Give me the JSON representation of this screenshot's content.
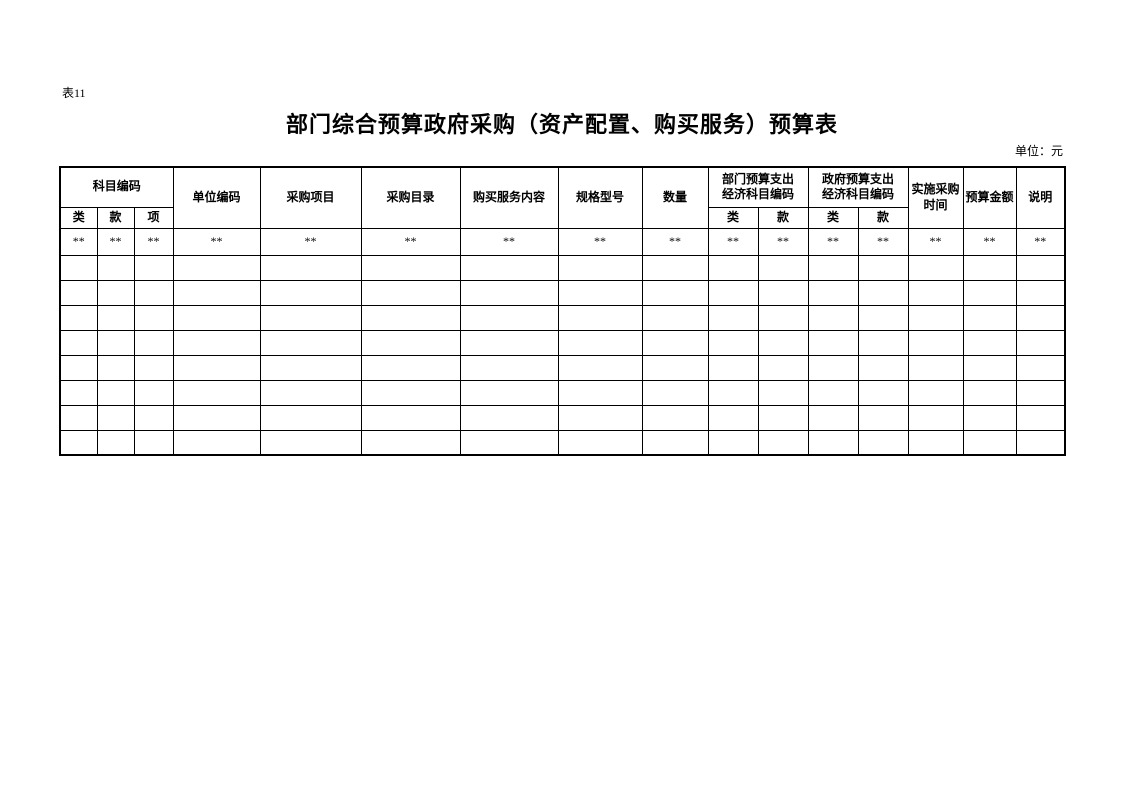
{
  "page": {
    "sheet_label": "表11",
    "title": "部门综合预算政府采购（资产配置、购买服务）预算表",
    "unit_note": "单位：元"
  },
  "table": {
    "header": {
      "subject_code": "科目编码",
      "subject_code_sub": [
        "类",
        "款",
        "项"
      ],
      "unit_code": "单位编码",
      "procurement_project": "采购项目",
      "procurement_catalog": "采购目录",
      "purchase_service_content": "购买服务内容",
      "spec_model": "规格型号",
      "quantity": "数量",
      "dept_budget_econ_line1": "部门预算支出",
      "dept_budget_econ_line2": "经济科目编码",
      "dept_budget_econ_sub": [
        "类",
        "款"
      ],
      "gov_budget_econ_line1": "政府预算支出",
      "gov_budget_econ_line2": "经济科目编码",
      "gov_budget_econ_sub": [
        "类",
        "款"
      ],
      "purchase_time_line1": "实施采购",
      "purchase_time_line2": "时间",
      "budget_amount": "预算金额",
      "note": "说明"
    },
    "rows": [
      [
        "**",
        "**",
        "**",
        "**",
        "**",
        "**",
        "**",
        "**",
        "**",
        "**",
        "**",
        "**",
        "**",
        "**",
        "**",
        "**"
      ],
      [
        "",
        "",
        "",
        "",
        "",
        "",
        "",
        "",
        "",
        "",
        "",
        "",
        "",
        "",
        "",
        ""
      ],
      [
        "",
        "",
        "",
        "",
        "",
        "",
        "",
        "",
        "",
        "",
        "",
        "",
        "",
        "",
        "",
        ""
      ],
      [
        "",
        "",
        "",
        "",
        "",
        "",
        "",
        "",
        "",
        "",
        "",
        "",
        "",
        "",
        "",
        ""
      ],
      [
        "",
        "",
        "",
        "",
        "",
        "",
        "",
        "",
        "",
        "",
        "",
        "",
        "",
        "",
        "",
        ""
      ],
      [
        "",
        "",
        "",
        "",
        "",
        "",
        "",
        "",
        "",
        "",
        "",
        "",
        "",
        "",
        "",
        ""
      ],
      [
        "",
        "",
        "",
        "",
        "",
        "",
        "",
        "",
        "",
        "",
        "",
        "",
        "",
        "",
        "",
        ""
      ],
      [
        "",
        "",
        "",
        "",
        "",
        "",
        "",
        "",
        "",
        "",
        "",
        "",
        "",
        "",
        "",
        ""
      ],
      [
        "",
        "",
        "",
        "",
        "",
        "",
        "",
        "",
        "",
        "",
        "",
        "",
        "",
        "",
        "",
        ""
      ]
    ]
  }
}
